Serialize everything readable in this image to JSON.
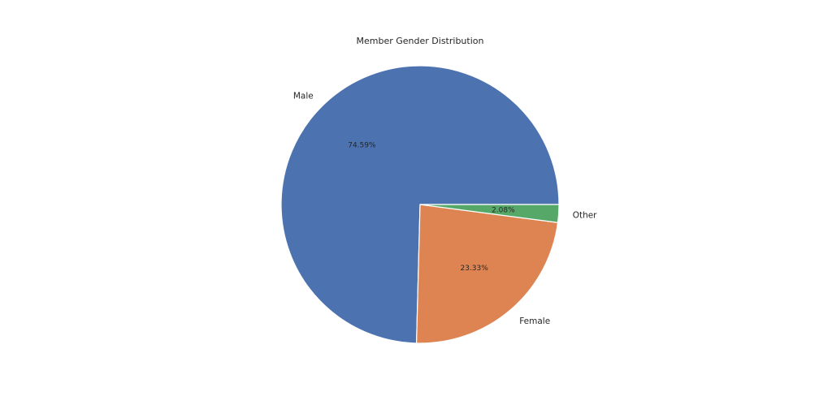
{
  "chart_data": {
    "type": "pie",
    "title": "Member Gender Distribution",
    "categories": [
      "Male",
      "Female",
      "Other"
    ],
    "values": [
      74.59,
      23.33,
      2.08
    ],
    "value_labels": [
      "74.59%",
      "23.33%",
      "2.08%"
    ],
    "colors": [
      "#4c72b0",
      "#dd8452",
      "#55a868"
    ],
    "start_angle": "0 degrees (3 o'clock), counter-clockwise",
    "legend": "none"
  }
}
